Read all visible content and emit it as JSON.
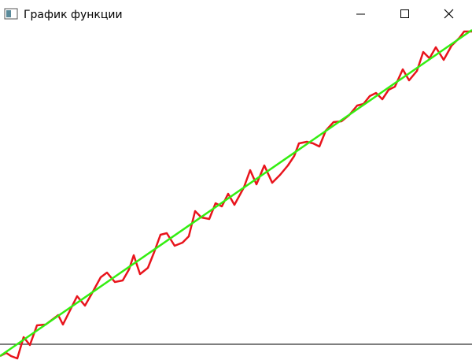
{
  "window": {
    "title": "График функции"
  },
  "chart_data": {
    "type": "line",
    "xlim": [
      0,
      600
    ],
    "ylim": [
      -20,
      407
    ],
    "series": [
      {
        "color": "#e8141c",
        "x": [
          0,
          8,
          14,
          22,
          30,
          38,
          47,
          58,
          66,
          74,
          80,
          90,
          98,
          108,
          116,
          128,
          136,
          146,
          156,
          164,
          170,
          178,
          188,
          196,
          204,
          212,
          222,
          232,
          240,
          248,
          256,
          266,
          274,
          282,
          290,
          298,
          310,
          318,
          326,
          336,
          346,
          356,
          366,
          374,
          380,
          390,
          398,
          406,
          414,
          424,
          434,
          444,
          454,
          462,
          470,
          478,
          486,
          494,
          502,
          512,
          520,
          530,
          538,
          546,
          554,
          564,
          574,
          584,
          590,
          600
        ],
        "values": [
          -15,
          -11,
          -15,
          -18,
          9,
          -1,
          24,
          25,
          31,
          37,
          25,
          45,
          61,
          49,
          63,
          85,
          91,
          79,
          81,
          95,
          113,
          89,
          97,
          117,
          139,
          141,
          125,
          129,
          137,
          169,
          161,
          159,
          179,
          175,
          191,
          177,
          199,
          221,
          203,
          227,
          205,
          215,
          227,
          239,
          255,
          257,
          255,
          251,
          271,
          282,
          283,
          291,
          303,
          305,
          315,
          319,
          311,
          323,
          327,
          349,
          335,
          347,
          371,
          363,
          377,
          361,
          379,
          389,
          397,
          397
        ]
      },
      {
        "color": "#33ee11",
        "x": [
          0,
          600
        ],
        "values": [
          -15,
          399
        ]
      }
    ]
  }
}
